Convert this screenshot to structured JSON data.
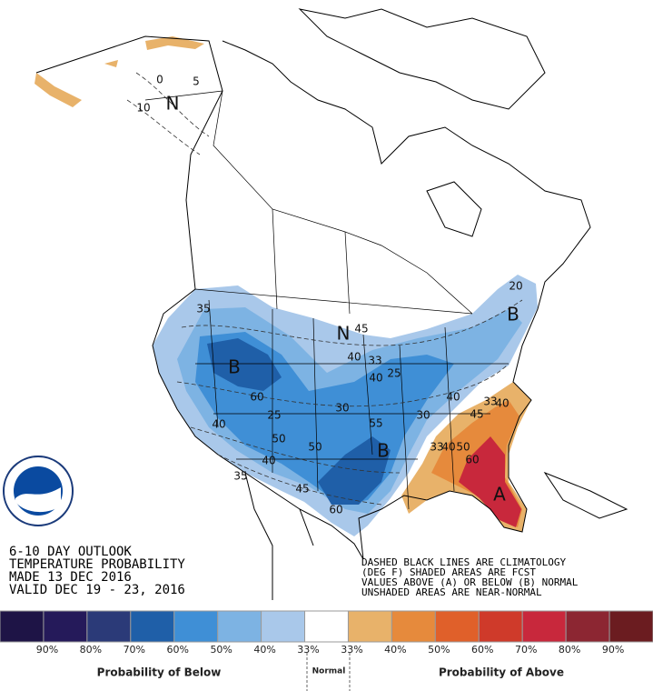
{
  "outlook": {
    "lines": [
      "6-10 DAY OUTLOOK",
      "TEMPERATURE PROBABILITY",
      "MADE  13 DEC 2016",
      "VALID  DEC 19 - 23, 2016"
    ]
  },
  "notes": {
    "lines": [
      "DASHED BLACK LINES ARE CLIMATOLOGY",
      "(DEG F) SHADED AREAS ARE FCST",
      "VALUES ABOVE (A) OR BELOW (B) NORMAL",
      "UNSHADED AREAS ARE NEAR-NORMAL"
    ]
  },
  "map": {
    "contour_labels": [
      "N",
      "0",
      "5",
      "10",
      "35",
      "B",
      "60",
      "40",
      "25",
      "50",
      "50",
      "30",
      "45",
      "N",
      "40",
      "33",
      "40",
      "25",
      "55",
      "30",
      "40",
      "B",
      "45",
      "60",
      "35",
      "40",
      "33",
      "40",
      "50",
      "60",
      "A",
      "33",
      "45",
      "40",
      "B",
      "20"
    ]
  },
  "legend": {
    "colors": [
      "#1e1446",
      "#251a5a",
      "#2b3a78",
      "#1f5fa8",
      "#3f8fd6",
      "#7db3e3",
      "#a9c8ea",
      "#ffffff",
      "#e8b26a",
      "#e68a3c",
      "#e0602a",
      "#cf3a2a",
      "#c8283c",
      "#8c2632",
      "#6b1c20"
    ],
    "labels": [
      "90%",
      "80%",
      "70%",
      "60%",
      "50%",
      "40%",
      "33%",
      "33%",
      "40%",
      "50%",
      "60%",
      "70%",
      "80%",
      "90%"
    ],
    "below_caption": "Probability of Below",
    "normal_caption": "Normal",
    "above_caption": "Probability of Above"
  }
}
